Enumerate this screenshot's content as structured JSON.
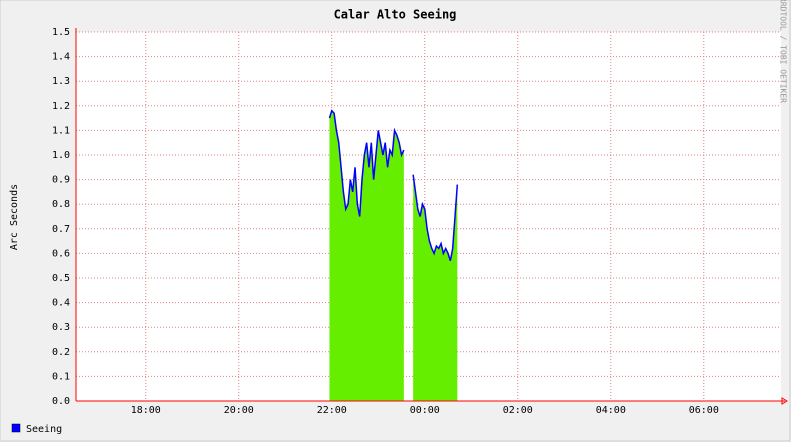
{
  "chart_data": {
    "type": "area",
    "title": "Calar Alto Seeing",
    "ylabel": "Arc Seconds",
    "watermark": "RRDTOOL / TOBI OETIKER",
    "x": [
      21.95,
      22.0,
      22.05,
      22.1,
      22.15,
      22.2,
      22.25,
      22.3,
      22.35,
      22.4,
      22.45,
      22.5,
      22.55,
      22.6,
      22.65,
      22.7,
      22.75,
      22.8,
      22.85,
      22.9,
      22.95,
      23.0,
      23.05,
      23.1,
      23.15,
      23.2,
      23.25,
      23.3,
      23.35,
      23.4,
      23.45,
      23.5,
      23.55,
      23.65,
      23.75,
      23.8,
      23.85,
      23.9,
      23.95,
      24.0,
      24.05,
      24.1,
      24.15,
      24.2,
      24.25,
      24.3,
      24.35,
      24.4,
      24.45,
      24.5,
      24.55,
      24.6,
      24.65,
      24.7
    ],
    "series": [
      {
        "name": "Seeing",
        "color": "#0000ff",
        "fill": "#66ee00",
        "values": [
          1.15,
          1.18,
          1.17,
          1.1,
          1.05,
          0.95,
          0.85,
          0.78,
          0.8,
          0.9,
          0.85,
          0.95,
          0.8,
          0.75,
          0.9,
          1.0,
          1.05,
          0.95,
          1.05,
          0.9,
          1.0,
          1.1,
          1.05,
          1.0,
          1.05,
          0.95,
          1.02,
          1.0,
          1.1,
          1.08,
          1.05,
          1.0,
          1.02,
          null,
          0.92,
          0.85,
          0.78,
          0.75,
          0.8,
          0.78,
          0.7,
          0.65,
          0.62,
          0.6,
          0.63,
          0.62,
          0.64,
          0.6,
          0.62,
          0.6,
          0.57,
          0.62,
          0.75,
          0.88
        ]
      }
    ],
    "xlim": [
      16.5,
      31.66
    ],
    "xticks": [
      {
        "value": 18,
        "label": "18:00"
      },
      {
        "value": 20,
        "label": "20:00"
      },
      {
        "value": 22,
        "label": "22:00"
      },
      {
        "value": 24,
        "label": "00:00"
      },
      {
        "value": 26,
        "label": "02:00"
      },
      {
        "value": 28,
        "label": "04:00"
      },
      {
        "value": 30,
        "label": "06:00"
      }
    ],
    "ylim": [
      0,
      1.5
    ],
    "yticks": [
      {
        "value": 0,
        "label": "0.0"
      },
      0.1,
      0.2,
      0.3,
      0.4,
      0.5,
      0.6,
      0.7,
      0.8,
      0.9,
      {
        "value": 1,
        "label": "1.0"
      },
      1.1,
      1.2,
      1.3,
      1.4,
      1.5
    ],
    "grid": true
  }
}
